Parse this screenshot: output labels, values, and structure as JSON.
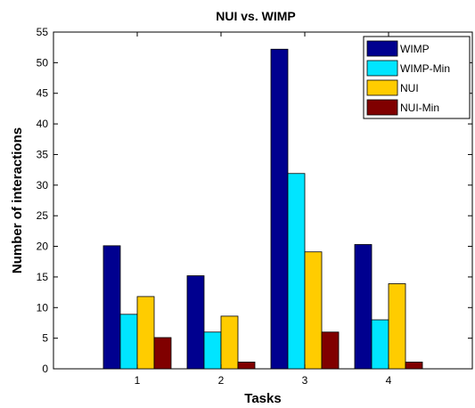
{
  "chart_data": {
    "type": "bar",
    "title": "NUI vs. WIMP",
    "xlabel": "Tasks",
    "ylabel": "Number of interactions",
    "categories": [
      "1",
      "2",
      "3",
      "4"
    ],
    "ylim": [
      0,
      55
    ],
    "yticks": [
      0,
      5,
      10,
      15,
      20,
      25,
      30,
      35,
      40,
      45,
      50,
      55
    ],
    "grid": false,
    "legend_position": "top-right",
    "series": [
      {
        "name": "WIMP",
        "color": "#00008f",
        "values": [
          20.1,
          15.2,
          52.2,
          20.3
        ]
      },
      {
        "name": "WIMP-Min",
        "color": "#00e5ff",
        "values": [
          8.9,
          6.0,
          31.9,
          8.0
        ]
      },
      {
        "name": "NUI",
        "color": "#ffcc00",
        "values": [
          11.8,
          8.6,
          19.1,
          13.9
        ]
      },
      {
        "name": "NUI-Min",
        "color": "#800000",
        "values": [
          5.1,
          1.1,
          6.0,
          1.1
        ]
      }
    ]
  }
}
